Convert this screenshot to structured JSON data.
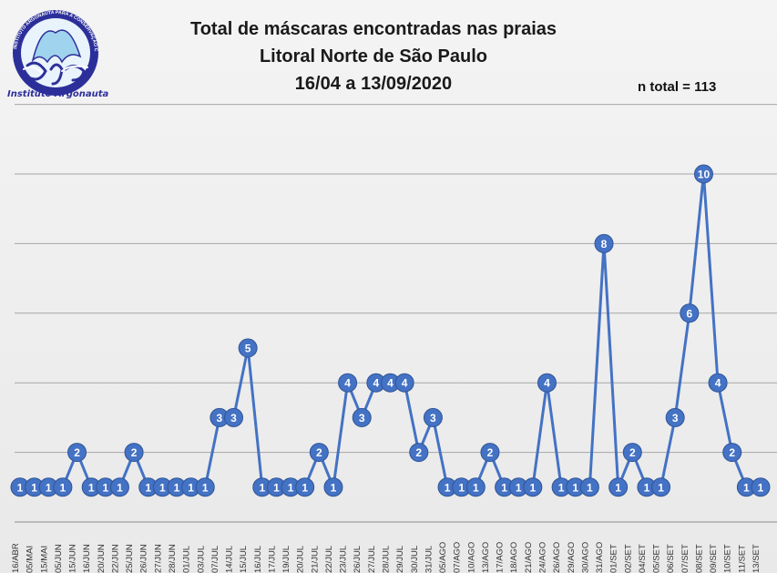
{
  "header": {
    "title_line1": "Total de máscaras encontradas nas praias",
    "title_line2": "Litoral Norte de São Paulo",
    "title_line3": "16/04 a 13/09/2020",
    "total_label": "n total = 113"
  },
  "logo": {
    "name": "Instituto Argonauta",
    "ring_text": "INSTITUTO ARGONAUTA PARA A CONSERVAÇÃO COSTEIRA E MARINHA"
  },
  "colors": {
    "series": "#4472c4",
    "marker_border": "#2f5597",
    "grid": "#a6a6a6",
    "label": "#ffffff"
  },
  "chart_data": {
    "type": "line",
    "title": "Total de máscaras encontradas nas praias - Litoral Norte de São Paulo - 16/04 a 13/09/2020",
    "xlabel": "",
    "ylabel": "",
    "ylim": [
      0,
      10
    ],
    "grid": true,
    "categories": [
      "16/ABR",
      "05/MAI",
      "15/MAI",
      "05/JUN",
      "15/JUN",
      "16/JUN",
      "20/JUN",
      "22/JUN",
      "25/JUN",
      "26/JUN",
      "27/JUN",
      "28/JUN",
      "01/JUL",
      "03/JUL",
      "07/JUL",
      "14/JUL",
      "15/JUL",
      "16/JUL",
      "17/JUL",
      "19/JUL",
      "20/JUL",
      "21/JUL",
      "22/JUL",
      "23/JUL",
      "26/JUL",
      "27/JUL",
      "28/JUL",
      "29/JUL",
      "30/JUL",
      "31/JUL",
      "05/AGO",
      "07/AGO",
      "10/AGO",
      "13/AGO",
      "17/AGO",
      "18/AGO",
      "21/AGO",
      "24/AGO",
      "26/AGO",
      "29/AGO",
      "30/AGO",
      "31/AGO",
      "01/SET",
      "02/SET",
      "04/SET",
      "05/SET",
      "06/SET",
      "07/SET",
      "08/SET",
      "09/SET",
      "10/SET",
      "11/SET",
      "13/SET"
    ],
    "series": [
      {
        "name": "Máscaras",
        "values": [
          1,
          1,
          1,
          1,
          2,
          1,
          1,
          1,
          2,
          1,
          1,
          1,
          1,
          1,
          3,
          3,
          5,
          1,
          1,
          1,
          1,
          2,
          1,
          4,
          3,
          4,
          4,
          4,
          2,
          3,
          1,
          1,
          1,
          2,
          1,
          1,
          1,
          4,
          1,
          1,
          1,
          8,
          1,
          2,
          1,
          1,
          3,
          6,
          10,
          4,
          2,
          1,
          1
        ]
      }
    ]
  }
}
